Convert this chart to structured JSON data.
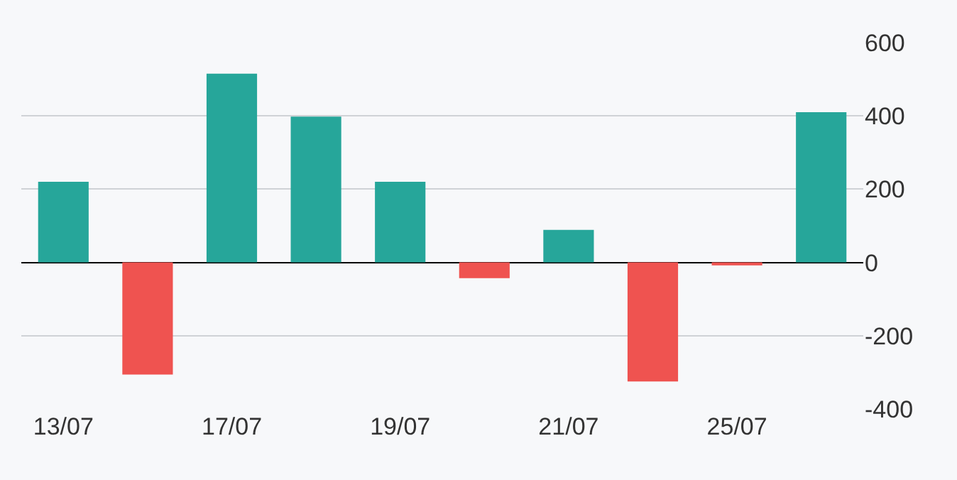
{
  "chart_data": {
    "type": "bar",
    "categories": [
      "13/07",
      null,
      "17/07",
      null,
      "19/07",
      null,
      "21/07",
      null,
      "25/07",
      null
    ],
    "values": [
      220,
      -306,
      515,
      398,
      220,
      -43,
      89,
      -325,
      -8,
      410
    ],
    "colors": [
      "#26a69a",
      "#ef5350",
      "#26a69a",
      "#26a69a",
      "#26a69a",
      "#ef5350",
      "#26a69a",
      "#ef5350",
      "#ef5350",
      "#26a69a"
    ],
    "ylim": [
      -400,
      600
    ],
    "yticks": [
      -400,
      -200,
      0,
      200,
      400,
      600
    ],
    "grid": "y"
  }
}
